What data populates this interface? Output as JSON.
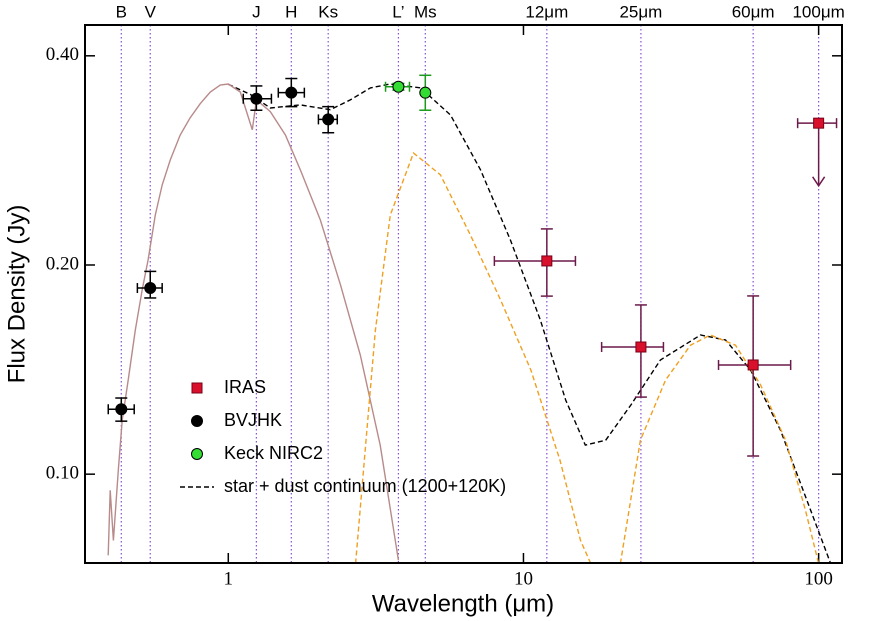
{
  "chart_data": {
    "type": "scatter",
    "xlabel": "Wavelength (μm)",
    "ylabel": "Flux Density (Jy)",
    "xscale": "log",
    "yscale": "log",
    "xlim": [
      0.327,
      120
    ],
    "ylim": [
      0.0745,
      0.443
    ],
    "xticks": [
      1,
      10,
      100
    ],
    "yticks": [
      {
        "value": 0.1,
        "label": "0.10"
      },
      {
        "value": 0.2,
        "label": "0.20"
      },
      {
        "value": 0.4,
        "label": "0.40"
      }
    ],
    "bands": {
      "color": "#8a4fd0",
      "labels": [
        "B",
        "V",
        "J",
        "H",
        "Ks",
        "L’",
        "Ms",
        "12μm",
        "25μm",
        "60μm",
        "100μm"
      ],
      "x": [
        0.434,
        0.544,
        1.245,
        1.635,
        2.18,
        3.77,
        4.65,
        12,
        25,
        60,
        100
      ]
    },
    "series": [
      {
        "name": "IRAS",
        "marker": "square",
        "color": "#d8102c",
        "errcolor": "#6b1a4a",
        "x": [
          12,
          25,
          60,
          100
        ],
        "values": [
          0.2027,
          0.1524,
          0.1436,
          0.32
        ],
        "ylow": [
          0.1804,
          0.1291,
          0.1062,
          0.26
        ],
        "yhigh": [
          0.2254,
          0.1752,
          0.1805,
          null
        ],
        "xlow": [
          7.97,
          18.4,
          45.8,
          84.9
        ],
        "xhigh": [
          15.0,
          29.8,
          80.4,
          115
        ],
        "upper_limit": [
          false,
          false,
          false,
          true
        ]
      },
      {
        "name": "BVJHK",
        "marker": "circle",
        "color": "#000000",
        "errcolor": "#000000",
        "x": [
          0.434,
          0.544,
          1.245,
          1.635,
          2.18
        ],
        "values": [
          0.124,
          0.1853,
          0.347,
          0.354,
          0.324
        ],
        "ylow": [
          0.1192,
          0.1793,
          0.334,
          0.338,
          0.31
        ],
        "yhigh": [
          0.1287,
          0.1958,
          0.362,
          0.371,
          0.338
        ],
        "xlow": [
          0.392,
          0.492,
          1.124,
          1.477,
          2.02
        ],
        "xhigh": [
          0.48,
          0.597,
          1.4,
          1.81,
          2.34
        ]
      },
      {
        "name": "Keck NIRC2",
        "marker": "circle",
        "color": "#33dd33",
        "errcolor": "#1a9a1a",
        "x": [
          3.77,
          4.65
        ],
        "values": [
          0.361,
          0.354
        ],
        "ylow": [
          0.357,
          0.334
        ],
        "yhigh": [
          0.365,
          0.375
        ],
        "xlow": [
          3.41,
          null
        ],
        "xhigh": [
          4.11,
          null
        ]
      },
      {
        "name": "star + dust continuum (1200+120K)",
        "marker": "line",
        "color": "#000000",
        "dash": true,
        "x": [
          1.0,
          1.187,
          1.388,
          1.754,
          2.216,
          2.59,
          3.03,
          3.54,
          4.48,
          5.66,
          7.15,
          9.03,
          11.4,
          13.9,
          16.2,
          19.0,
          23.1,
          29.1,
          39.8,
          48.4,
          58.8,
          74.3,
          94.0,
          109.8
        ],
        "values": [
          0.364,
          0.352,
          0.3365,
          0.34,
          0.3346,
          0.3456,
          0.3597,
          0.3643,
          0.3597,
          0.3288,
          0.2742,
          0.2173,
          0.1667,
          0.1278,
          0.1101,
          0.1119,
          0.1257,
          0.146,
          0.1586,
          0.156,
          0.1412,
          0.1157,
          0.0887,
          0.0744
        ]
      },
      {
        "marker": "line",
        "color": "#b88a8a",
        "dash": false,
        "x": [
          0.392,
          0.398,
          0.408,
          0.424,
          0.437,
          0.458,
          0.484,
          0.511,
          0.535,
          0.566,
          0.597,
          0.636,
          0.687,
          0.743,
          0.804,
          0.869,
          0.939,
          1.0,
          1.098,
          1.206,
          1.245,
          1.388,
          1.561,
          1.754,
          2.05,
          2.399,
          2.8,
          3.27,
          3.77
        ],
        "values": [
          0.0764,
          0.0948,
          0.0803,
          0.1013,
          0.1196,
          0.1366,
          0.1612,
          0.1842,
          0.2034,
          0.236,
          0.2608,
          0.2833,
          0.3077,
          0.3258,
          0.3414,
          0.3548,
          0.3631,
          0.3643,
          0.3548,
          0.313,
          0.3456,
          0.3325,
          0.3077,
          0.2742,
          0.2322,
          0.1872,
          0.1484,
          0.1101,
          0.0752
        ]
      },
      {
        "marker": "line",
        "color": "#f0a020",
        "dash": true,
        "x": [
          2.7,
          2.91,
          3.15,
          3.54,
          4.24,
          5.23,
          6.61,
          8.36,
          10.6,
          13.3,
          15.6,
          16.9
        ],
        "values": [
          0.0744,
          0.1083,
          0.1612,
          0.236,
          0.2899,
          0.2697,
          0.2209,
          0.1782,
          0.1412,
          0.1047,
          0.0803,
          0.0744
        ]
      },
      {
        "marker": "line",
        "color": "#f0a020",
        "dash": true,
        "x": [
          21.3,
          24.9,
          30.3,
          36.8,
          43.0,
          52.3,
          63.6,
          77.3,
          90.3,
          100
        ],
        "values": [
          0.0744,
          0.1119,
          0.1366,
          0.1533,
          0.1586,
          0.1533,
          0.1344,
          0.1119,
          0.0887,
          0.0744
        ]
      }
    ]
  }
}
